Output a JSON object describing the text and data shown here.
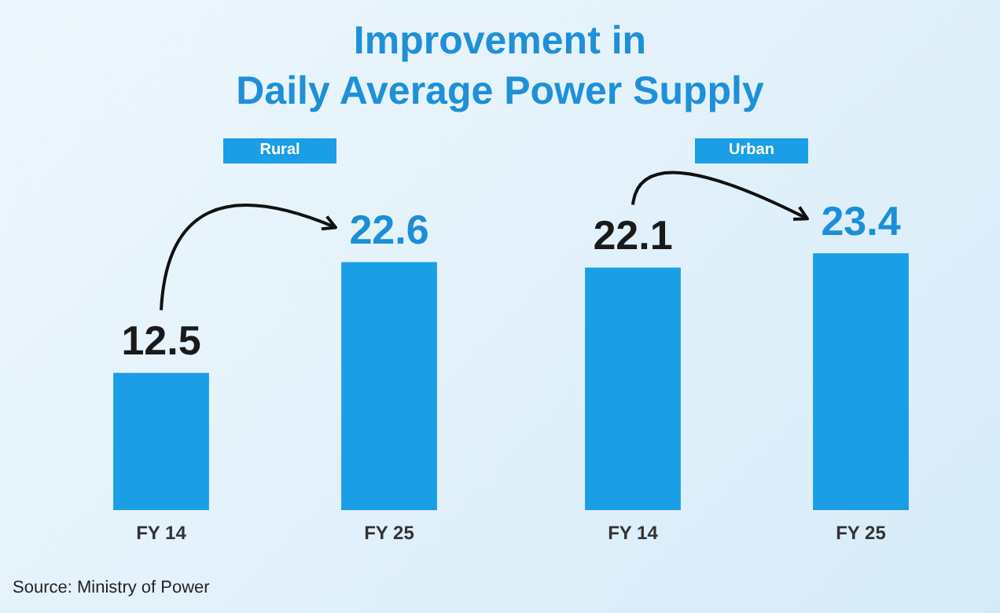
{
  "chart_data": [
    {
      "type": "bar",
      "title": "Improvement in\nDaily Average Power Supply",
      "subtitle": "Rural",
      "categories": [
        "FY 14",
        "FY 25"
      ],
      "values": [
        12.5,
        22.6
      ],
      "color": "#1a9ee6",
      "data_labels": true,
      "grid": false,
      "legend": false,
      "tick_labels": "x",
      "annotations": [
        "Source: Ministry of Power"
      ]
    },
    {
      "type": "bar",
      "subtitle": "Urban",
      "categories": [
        "FY 14",
        "FY 25"
      ],
      "values": [
        22.1,
        23.4
      ],
      "color": "#1a9ee6",
      "data_labels": true,
      "grid": false,
      "legend": false,
      "tick_labels": "x"
    }
  ]
}
